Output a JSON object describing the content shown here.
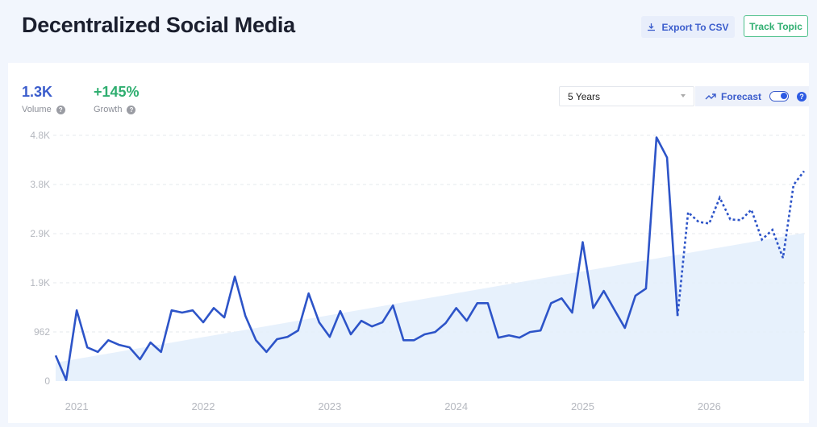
{
  "header": {
    "title": "Decentralized Social Media",
    "export_label": "Export To CSV",
    "track_label": "Track Topic"
  },
  "stats": {
    "volume_value": "1.3K",
    "volume_label": "Volume",
    "growth_value": "+145%",
    "growth_label": "Growth"
  },
  "controls": {
    "range_selected": "5 Years",
    "forecast_label": "Forecast",
    "forecast_enabled": true
  },
  "colors": {
    "line": "#2d54c8",
    "trend_fill": "#e3eefc",
    "growth": "#2fae70",
    "volume": "#3a5ccc"
  },
  "icons": {
    "export": "download-icon",
    "forecast": "trending-up-icon",
    "help": "question-icon"
  },
  "chart_data": {
    "type": "line",
    "ytick_labels": [
      "0",
      "962",
      "1.9K",
      "2.9K",
      "3.8K",
      "4.8K"
    ],
    "yticks": [
      0,
      962,
      1924,
      2886,
      3848,
      4810
    ],
    "ylim": [
      0,
      4810
    ],
    "xtick_labels": [
      "2021",
      "2022",
      "2023",
      "2024",
      "2025",
      "2026"
    ],
    "grid": "horizontal dashed",
    "actual": {
      "start": "2020-11",
      "values": [
        500,
        20,
        1385,
        660,
        570,
        800,
        710,
        660,
        425,
        755,
        570,
        1385,
        1340,
        1385,
        1150,
        1430,
        1245,
        2045,
        1275,
        800,
        570,
        820,
        865,
        990,
        1715,
        1150,
        865,
        1370,
        915,
        1180,
        1070,
        1150,
        1480,
        800,
        800,
        915,
        960,
        1135,
        1430,
        1180,
        1525,
        1525,
        850,
        895,
        850,
        960,
        990,
        1525,
        1620,
        1340,
        2720,
        1430,
        1765,
        1400,
        1040,
        1670,
        1810,
        4770,
        4375,
        1275
      ]
    },
    "forecast": {
      "start": "2025-11",
      "style": "dashed",
      "values": [
        3305,
        3115,
        3085,
        3590,
        3165,
        3150,
        3355,
        2770,
        2960,
        2410,
        3840,
        4110
      ]
    },
    "trend": {
      "type": "area",
      "start_value": 360,
      "end_value": 2900
    }
  }
}
